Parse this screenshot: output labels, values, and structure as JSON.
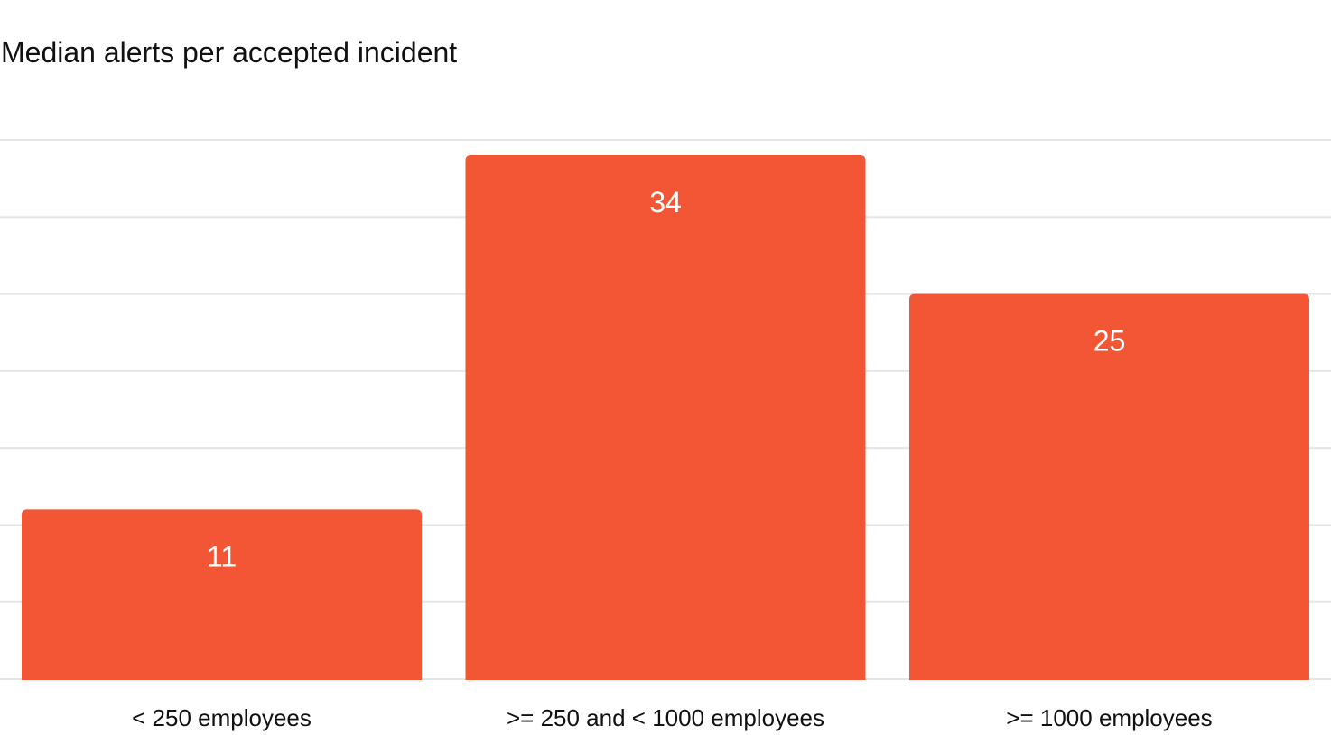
{
  "chart_data": {
    "type": "bar",
    "title": "Median alerts per accepted incident",
    "categories": [
      "< 250 employees",
      ">= 250 and < 1000 employees",
      ">= 1000 employees"
    ],
    "values": [
      11,
      34,
      25
    ],
    "ylim": [
      0,
      35
    ],
    "ytick_step": 5,
    "grid": true,
    "data_labels": true,
    "colors": {
      "bar": "#F25635",
      "grid": "#E5E5E5",
      "label": "#FFFFFF",
      "text": "#111111"
    }
  }
}
